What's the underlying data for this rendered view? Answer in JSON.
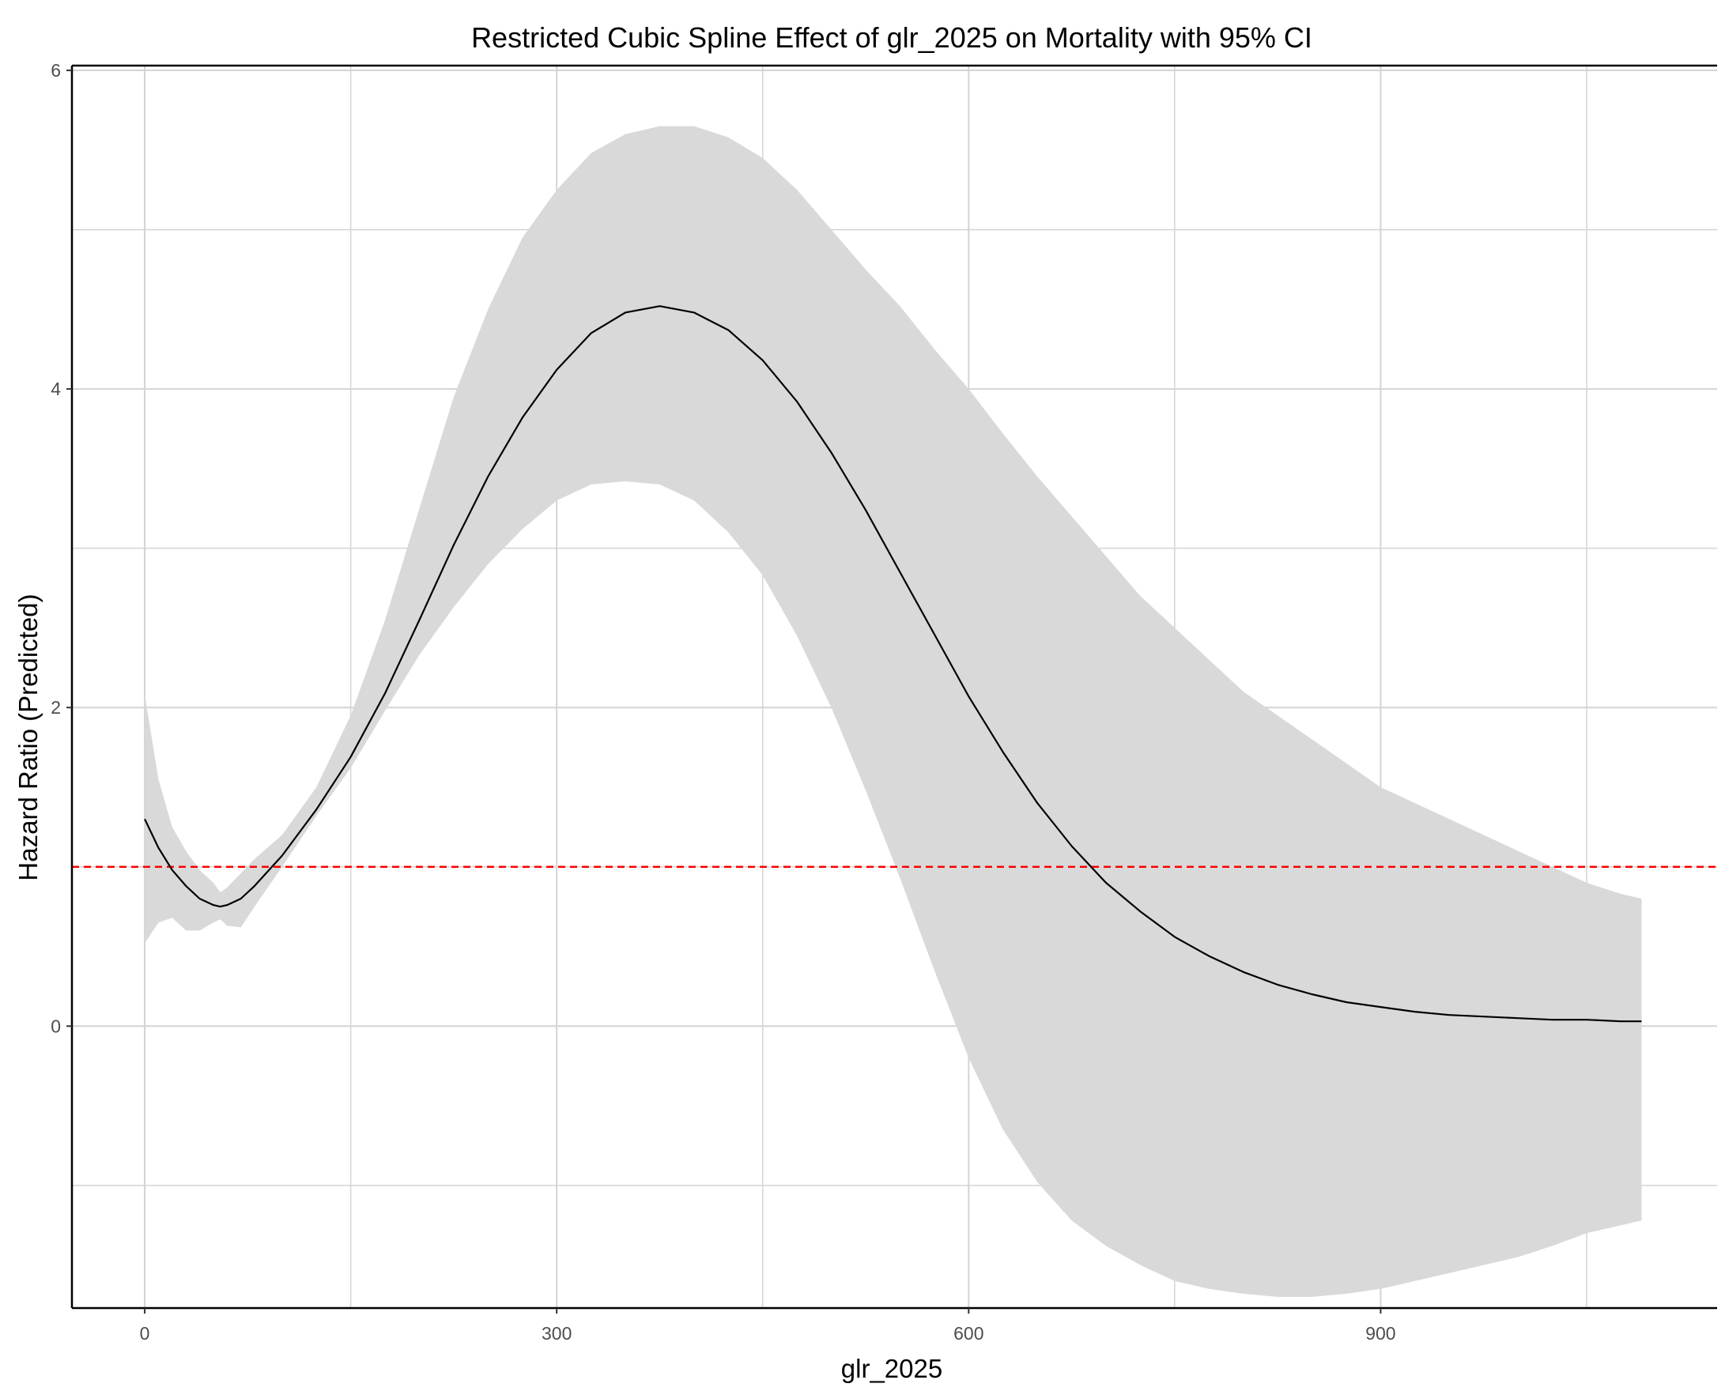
{
  "chart_data": {
    "type": "line",
    "title": "Restricted Cubic Spline Effect of glr_2025 on Mortality with 95% CI",
    "xlabel": "glr_2025",
    "ylabel": "Hazard Ratio (Predicted)",
    "xlim": [
      -53,
      1145
    ],
    "ylim": [
      -1.77,
      6.03
    ],
    "x_ticks": [
      0,
      300,
      600,
      900
    ],
    "x_tick_labels": [
      "0",
      "300",
      "600",
      "900"
    ],
    "y_ticks": [
      0,
      2,
      4,
      6
    ],
    "y_tick_labels": [
      "0",
      "2",
      "4",
      "6"
    ],
    "grid": true,
    "reference_line": {
      "y": 1,
      "color": "#ff0000",
      "style": "dashed"
    },
    "colors": {
      "line": "#000000",
      "ribbon": "#d9d9d9",
      "grid": "#d4d4d4",
      "reference": "#ff0000"
    },
    "series": [
      {
        "type": "ribbon",
        "x": [
          0,
          10,
          20,
          30,
          40,
          50,
          55,
          60,
          70,
          80,
          100,
          125,
          150,
          175,
          200,
          225,
          250,
          275,
          300,
          325,
          350,
          375,
          400,
          425,
          450,
          475,
          500,
          525,
          550,
          575,
          600,
          625,
          650,
          675,
          700,
          725,
          750,
          775,
          800,
          825,
          850,
          875,
          900,
          925,
          950,
          975,
          1000,
          1025,
          1050,
          1075,
          1090
        ],
        "upper": [
          2.08,
          1.55,
          1.25,
          1.1,
          0.98,
          0.9,
          0.84,
          0.87,
          0.96,
          1.05,
          1.2,
          1.5,
          1.95,
          2.55,
          3.25,
          3.95,
          4.5,
          4.95,
          5.25,
          5.48,
          5.6,
          5.65,
          5.65,
          5.58,
          5.45,
          5.25,
          5.0,
          4.75,
          4.52,
          4.25,
          4.0,
          3.72,
          3.45,
          3.2,
          2.95,
          2.7,
          2.5,
          2.3,
          2.1,
          1.95,
          1.8,
          1.65,
          1.5,
          1.4,
          1.3,
          1.2,
          1.1,
          1.0,
          0.9,
          0.83,
          0.8
        ],
        "lower": [
          0.52,
          0.65,
          0.68,
          0.6,
          0.6,
          0.65,
          0.67,
          0.63,
          0.62,
          0.75,
          1.0,
          1.32,
          1.62,
          1.98,
          2.33,
          2.63,
          2.9,
          3.12,
          3.3,
          3.4,
          3.42,
          3.4,
          3.3,
          3.1,
          2.83,
          2.45,
          2.0,
          1.48,
          0.93,
          0.35,
          -0.2,
          -0.65,
          -0.98,
          -1.22,
          -1.38,
          -1.5,
          -1.6,
          -1.65,
          -1.68,
          -1.7,
          -1.7,
          -1.68,
          -1.65,
          -1.6,
          -1.55,
          -1.5,
          -1.45,
          -1.38,
          -1.3,
          -1.25,
          -1.22
        ]
      },
      {
        "type": "line",
        "x": [
          0,
          10,
          20,
          30,
          40,
          50,
          55,
          60,
          70,
          80,
          100,
          125,
          150,
          175,
          200,
          225,
          250,
          275,
          300,
          325,
          350,
          375,
          400,
          425,
          450,
          475,
          500,
          525,
          550,
          575,
          600,
          625,
          650,
          675,
          700,
          725,
          750,
          775,
          800,
          825,
          850,
          875,
          900,
          925,
          950,
          975,
          1000,
          1025,
          1050,
          1075,
          1090
        ],
        "y": [
          1.3,
          1.12,
          0.98,
          0.88,
          0.8,
          0.76,
          0.75,
          0.76,
          0.8,
          0.88,
          1.07,
          1.36,
          1.69,
          2.09,
          2.55,
          3.02,
          3.45,
          3.82,
          4.12,
          4.35,
          4.48,
          4.52,
          4.48,
          4.37,
          4.18,
          3.92,
          3.6,
          3.24,
          2.85,
          2.46,
          2.07,
          1.72,
          1.4,
          1.13,
          0.9,
          0.72,
          0.56,
          0.44,
          0.34,
          0.26,
          0.2,
          0.15,
          0.12,
          0.09,
          0.07,
          0.06,
          0.05,
          0.04,
          0.04,
          0.03,
          0.03
        ]
      }
    ]
  }
}
